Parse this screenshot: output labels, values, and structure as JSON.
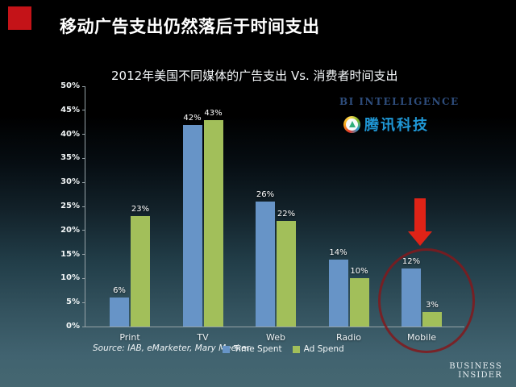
{
  "main": {
    "title": "移动广告支出仍然落后于时间支出"
  },
  "chart": {
    "title": "2012年美国不同媒体的广告支出 Vs. 消费者时间支出",
    "source": "Source:  IAB, eMarketer, Mary Meeker"
  },
  "branding": {
    "bi_logo": "BI INTELLIGENCE",
    "tencent": "腾讯科技",
    "footer_line1": "BUSINESS",
    "footer_line2": "INSIDER"
  },
  "colors": {
    "red_square": "#c41318",
    "arrow": "#df2317",
    "circle": "#82191c",
    "time_spent": "#6794c7",
    "ad_spend": "#a2bf5a",
    "bi_logo": "#2e4d7c",
    "tencent": "#1f97d5"
  },
  "chart_data": {
    "type": "bar",
    "title": "2012年美国不同媒体的广告支出 Vs. 消费者时间支出",
    "categories": [
      "Print",
      "TV",
      "Web",
      "Radio",
      "Mobile"
    ],
    "series": [
      {
        "name": "Time Spent",
        "color": "#6794c7",
        "values": [
          6,
          42,
          26,
          14,
          12
        ]
      },
      {
        "name": "Ad Spend",
        "color": "#a2bf5a",
        "values": [
          23,
          43,
          22,
          10,
          3
        ]
      }
    ],
    "xlabel": "",
    "ylabel": "",
    "ylim": [
      0,
      50
    ],
    "ytick_step": 5,
    "ytick_format": "percent",
    "grid": false,
    "legend_position": "bottom",
    "annotation": "red arrow and ellipse highlighting Mobile gap"
  }
}
